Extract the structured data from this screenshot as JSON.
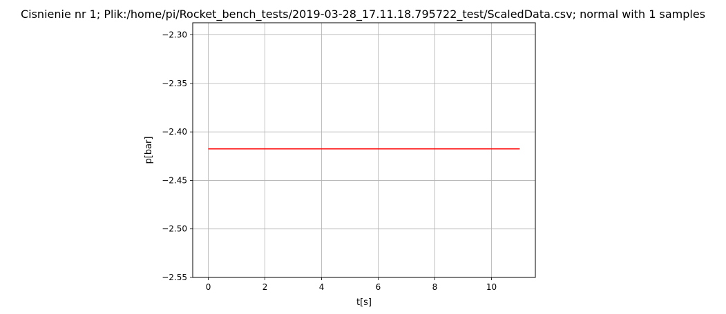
{
  "chart_data": {
    "type": "line",
    "title": "Cisnienie nr 1; Plik:/home/pi/Rocket_bench_tests/2019-03-28_17.11.18.795722_test/ScaledData.csv; normal with 1 samples",
    "xlabel": "t[s]",
    "ylabel": "p[bar]",
    "xlim": [
      -0.55,
      11.55
    ],
    "ylim": [
      -2.55,
      -2.2875
    ],
    "xticks": [
      0,
      2,
      4,
      6,
      8,
      10
    ],
    "xtick_labels": [
      "0",
      "2",
      "4",
      "6",
      "8",
      "10"
    ],
    "yticks": [
      -2.3,
      -2.35,
      -2.4,
      -2.45,
      -2.5,
      -2.55
    ],
    "ytick_labels": [
      "−2.30",
      "−2.35",
      "−2.40",
      "−2.45",
      "−2.50",
      "−2.55"
    ],
    "grid": true,
    "series": [
      {
        "color": "#ff0000",
        "x": [
          0,
          11
        ],
        "y": [
          -2.4175,
          -2.4175
        ]
      }
    ]
  }
}
